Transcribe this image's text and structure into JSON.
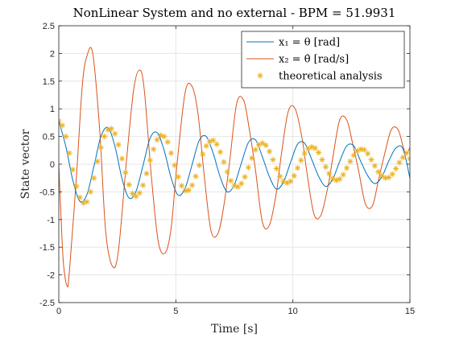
{
  "chart_data": {
    "type": "line",
    "title": "NonLinear System and no external - BPM = 51.9931",
    "xlabel": "Time [s]",
    "ylabel": "State vector",
    "xlim": [
      0,
      15
    ],
    "ylim": [
      -2.5,
      2.5
    ],
    "x_ticks": [
      "0",
      "5",
      "10",
      "15"
    ],
    "y_ticks": [
      "-2.5",
      "-2",
      "-1.5",
      "-1",
      "-0.5",
      "0",
      "0.5",
      "1",
      "1.5",
      "2",
      "2.5"
    ],
    "grid": true,
    "legend_position": "top-right",
    "series": [
      {
        "name": "x₁ = θ [rad]",
        "color": "#0072BD",
        "marker": "none",
        "x": [
          0,
          0.3,
          0.6,
          0.9,
          1.2,
          1.5,
          1.8,
          2.1,
          2.4,
          2.7,
          3.0,
          3.3,
          3.6,
          3.9,
          4.2,
          4.5,
          4.8,
          5.1,
          5.4,
          5.7,
          6.0,
          6.3,
          6.6,
          6.9,
          7.2,
          7.5,
          7.8,
          8.1,
          8.4,
          8.7,
          9.0,
          9.3,
          9.6,
          9.9,
          10.2,
          10.5,
          10.8,
          11.1,
          11.4,
          11.7,
          12.0,
          12.3,
          12.6,
          12.9,
          13.2,
          13.5,
          13.8,
          14.1,
          14.4,
          14.7,
          15.0
        ],
        "y": [
          0.78,
          0.32,
          -0.29,
          -0.67,
          -0.55,
          -0.04,
          0.5,
          0.66,
          0.32,
          -0.26,
          -0.61,
          -0.49,
          -0.02,
          0.47,
          0.57,
          0.25,
          -0.25,
          -0.56,
          -0.43,
          0.0,
          0.43,
          0.5,
          0.19,
          -0.24,
          -0.5,
          -0.37,
          0.02,
          0.39,
          0.44,
          0.13,
          -0.23,
          -0.45,
          -0.32,
          0.03,
          0.36,
          0.38,
          0.09,
          -0.22,
          -0.4,
          -0.27,
          0.05,
          0.33,
          0.33,
          0.05,
          -0.21,
          -0.35,
          -0.23,
          0.06,
          0.29,
          0.28,
          -0.25
        ]
      },
      {
        "name": "x₂ = θ̇ [rad/s]",
        "color": "#D95319",
        "marker": "none",
        "x": [
          0,
          0.1,
          0.2,
          0.35,
          0.45,
          0.75,
          1.0,
          1.2,
          1.45,
          1.75,
          2.0,
          2.3,
          2.55,
          2.9,
          3.2,
          3.45,
          3.65,
          3.95,
          4.25,
          4.55,
          4.8,
          5.05,
          5.4,
          5.7,
          5.95,
          6.2,
          6.5,
          6.8,
          7.05,
          7.3,
          7.6,
          7.9,
          8.15,
          8.4,
          8.7,
          9.0,
          9.3,
          9.5,
          9.8,
          10.1,
          10.4,
          10.6,
          10.9,
          11.2,
          11.5,
          11.7,
          12.0,
          12.3,
          12.55,
          12.8,
          13.1,
          13.4,
          13.65,
          13.9,
          14.2,
          14.5,
          14.8,
          15.0
        ],
        "y": [
          0.0,
          -1.0,
          -1.8,
          -2.2,
          -1.95,
          -0.25,
          1.4,
          1.95,
          2.0,
          0.6,
          -1.2,
          -1.85,
          -1.55,
          0.1,
          1.35,
          1.7,
          1.35,
          -0.2,
          -1.4,
          -1.6,
          -1.15,
          0.0,
          1.3,
          1.4,
          0.9,
          -0.15,
          -1.2,
          -1.25,
          -0.75,
          0.05,
          1.1,
          1.15,
          0.6,
          -0.1,
          -1.05,
          -1.1,
          -0.5,
          0.15,
          0.95,
          1.0,
          0.45,
          -0.15,
          -0.9,
          -0.92,
          -0.4,
          0.1,
          0.8,
          0.8,
          0.38,
          -0.1,
          -0.72,
          -0.75,
          -0.3,
          0.15,
          0.62,
          0.62,
          0.2,
          0.3
        ]
      },
      {
        "name": "theoretical analysis",
        "color": "#EDB120",
        "marker": "asterisk",
        "x": [
          0.0,
          0.15,
          0.3,
          0.45,
          0.6,
          0.75,
          0.9,
          1.05,
          1.2,
          1.35,
          1.5,
          1.65,
          1.8,
          1.95,
          2.1,
          2.25,
          2.4,
          2.55,
          2.7,
          2.85,
          3.0,
          3.15,
          3.3,
          3.45,
          3.6,
          3.75,
          3.9,
          4.05,
          4.2,
          4.35,
          4.5,
          4.65,
          4.8,
          4.95,
          5.1,
          5.25,
          5.4,
          5.55,
          5.7,
          5.85,
          6.0,
          6.15,
          6.3,
          6.45,
          6.6,
          6.75,
          6.9,
          7.05,
          7.2,
          7.35,
          7.5,
          7.65,
          7.8,
          7.95,
          8.1,
          8.25,
          8.4,
          8.55,
          8.7,
          8.85,
          9.0,
          9.15,
          9.3,
          9.45,
          9.6,
          9.75,
          9.9,
          10.05,
          10.2,
          10.35,
          10.5,
          10.65,
          10.8,
          10.95,
          11.1,
          11.25,
          11.4,
          11.55,
          11.7,
          11.85,
          12.0,
          12.15,
          12.3,
          12.45,
          12.6,
          12.75,
          12.9,
          13.05,
          13.2,
          13.35,
          13.5,
          13.65,
          13.8,
          13.95,
          14.1,
          14.25,
          14.4,
          14.55,
          14.7,
          14.85,
          15.0
        ],
        "y": [
          0.78,
          0.7,
          0.5,
          0.2,
          -0.1,
          -0.4,
          -0.6,
          -0.7,
          -0.68,
          -0.5,
          -0.25,
          0.05,
          0.3,
          0.5,
          0.62,
          0.64,
          0.55,
          0.35,
          0.1,
          -0.15,
          -0.37,
          -0.53,
          -0.58,
          -0.52,
          -0.38,
          -0.17,
          0.07,
          0.27,
          0.44,
          0.52,
          0.5,
          0.4,
          0.2,
          -0.02,
          -0.23,
          -0.39,
          -0.48,
          -0.47,
          -0.38,
          -0.22,
          -0.02,
          0.18,
          0.33,
          0.41,
          0.43,
          0.36,
          0.22,
          0.04,
          -0.14,
          -0.3,
          -0.39,
          -0.41,
          -0.35,
          -0.23,
          -0.06,
          0.11,
          0.26,
          0.35,
          0.38,
          0.34,
          0.23,
          0.08,
          -0.08,
          -0.22,
          -0.31,
          -0.34,
          -0.31,
          -0.21,
          -0.07,
          0.07,
          0.19,
          0.28,
          0.31,
          0.29,
          0.21,
          0.08,
          -0.05,
          -0.17,
          -0.26,
          -0.29,
          -0.27,
          -0.19,
          -0.07,
          0.05,
          0.16,
          0.24,
          0.27,
          0.26,
          0.19,
          0.08,
          -0.03,
          -0.14,
          -0.21,
          -0.25,
          -0.24,
          -0.18,
          -0.08,
          0.03,
          0.12,
          0.2,
          0.1
        ]
      }
    ]
  }
}
